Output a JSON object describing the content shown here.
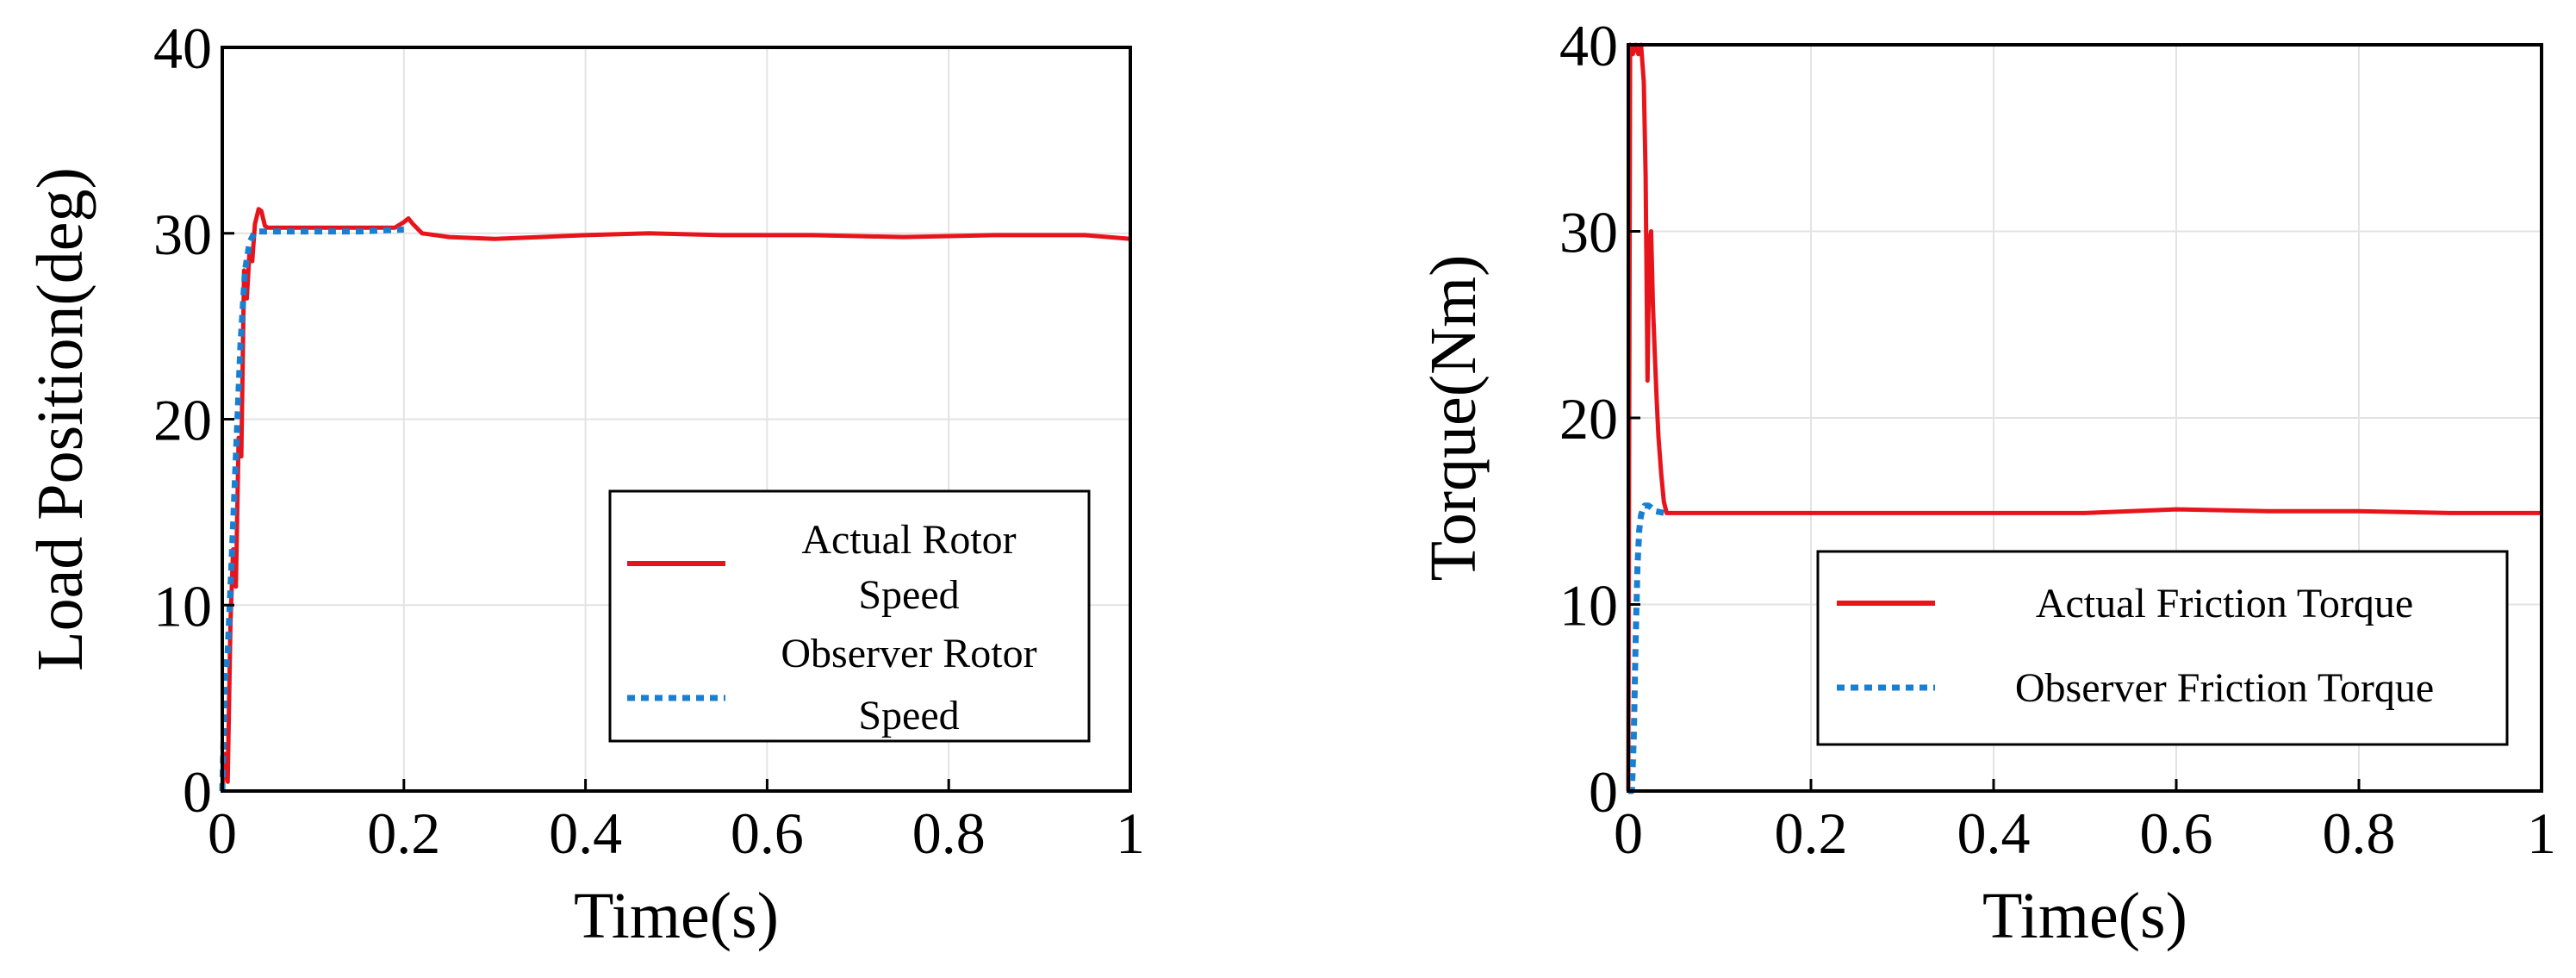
{
  "chart_data": [
    {
      "type": "line",
      "xlabel": "Time(s)",
      "ylabel": "Load Position(deg)",
      "xlim": [
        0,
        1
      ],
      "ylim": [
        0,
        40
      ],
      "xticks": [
        0,
        0.2,
        0.4,
        0.6,
        0.8,
        1
      ],
      "xtick_labels": [
        "0",
        "0.2",
        "0.4",
        "0.6",
        "0.8",
        "1"
      ],
      "yticks": [
        0,
        10,
        20,
        30,
        40
      ],
      "ytick_labels": [
        "0",
        "10",
        "20",
        "30",
        "40"
      ],
      "grid": true,
      "legend_position": "bottom-right",
      "series": [
        {
          "name": "Actual Rotor Speed",
          "legend_lines": [
            "Actual Rotor",
            "Speed"
          ],
          "color": "#e8141b",
          "style": "solid",
          "x": [
            0,
            0.003,
            0.006,
            0.009,
            0.012,
            0.015,
            0.018,
            0.021,
            0.024,
            0.027,
            0.03,
            0.033,
            0.036,
            0.04,
            0.043,
            0.047,
            0.05,
            0.06,
            0.08,
            0.1,
            0.15,
            0.19,
            0.2,
            0.205,
            0.21,
            0.22,
            0.25,
            0.3,
            0.35,
            0.4,
            0.47,
            0.55,
            0.65,
            0.75,
            0.85,
            0.95,
            1.0
          ],
          "y": [
            0,
            2,
            0.5,
            9,
            13,
            11,
            19,
            18,
            28,
            26.5,
            29,
            28.5,
            30.5,
            31.3,
            31.2,
            30.4,
            30.3,
            30.3,
            30.3,
            30.3,
            30.3,
            30.3,
            30.6,
            30.8,
            30.5,
            30.0,
            29.8,
            29.7,
            29.8,
            29.9,
            30.0,
            29.9,
            29.9,
            29.8,
            29.9,
            29.9,
            29.7
          ]
        },
        {
          "name": "Observer Rotor Speed",
          "legend_lines": [
            "Observer Rotor",
            "Speed"
          ],
          "color": "#1a7fd1",
          "style": "dotted",
          "x": [
            0,
            0.003,
            0.006,
            0.01,
            0.015,
            0.02,
            0.025,
            0.03,
            0.035,
            0.04,
            0.05,
            0.1,
            0.15,
            0.2
          ],
          "y": [
            0,
            6,
            7.5,
            12,
            18,
            24,
            28,
            29.5,
            30,
            30.1,
            30.1,
            30.1,
            30.1,
            30.2
          ]
        }
      ]
    },
    {
      "type": "line",
      "xlabel": "Time(s)",
      "ylabel": "Torque(Nm)",
      "xlim": [
        0,
        1
      ],
      "ylim": [
        0,
        40
      ],
      "xticks": [
        0,
        0.2,
        0.4,
        0.6,
        0.8,
        1
      ],
      "xtick_labels": [
        "0",
        "0.2",
        "0.4",
        "0.6",
        "0.8",
        "1"
      ],
      "yticks": [
        0,
        10,
        20,
        30,
        40
      ],
      "ytick_labels": [
        "0",
        "10",
        "20",
        "30",
        "40"
      ],
      "grid": true,
      "legend_position": "bottom-right",
      "series": [
        {
          "name": "Actual Friction Torque",
          "legend_lines": [
            "Actual Friction Torque"
          ],
          "color": "#e8141b",
          "style": "solid",
          "x": [
            0,
            0.002,
            0.005,
            0.008,
            0.011,
            0.014,
            0.017,
            0.019,
            0.021,
            0.023,
            0.025,
            0.027,
            0.029,
            0.031,
            0.033,
            0.036,
            0.039,
            0.042,
            0.045,
            0.05,
            0.06,
            0.1,
            0.2,
            0.3,
            0.4,
            0.5,
            0.6,
            0.7,
            0.8,
            0.9,
            1.0
          ],
          "y": [
            0,
            40,
            39.5,
            40,
            39.5,
            40,
            38,
            33,
            22,
            29.5,
            30,
            26,
            23.5,
            21,
            19,
            17,
            15.5,
            14.9,
            14.9,
            14.9,
            14.9,
            14.9,
            14.9,
            14.9,
            14.9,
            14.9,
            15.1,
            15.0,
            15.0,
            14.9,
            14.9
          ]
        },
        {
          "name": "Observer Friction Torque",
          "legend_lines": [
            "Observer Friction Torque"
          ],
          "color": "#1a7fd1",
          "style": "dotted",
          "x": [
            0,
            0.004,
            0.006,
            0.008,
            0.01,
            0.012,
            0.014,
            0.016,
            0.018,
            0.02,
            0.022,
            0.025,
            0.03,
            0.04
          ],
          "y": [
            0,
            0,
            3,
            8,
            12,
            14,
            14.8,
            15.1,
            15.3,
            15.3,
            15.3,
            15.2,
            15.0,
            14.9
          ]
        }
      ]
    }
  ]
}
